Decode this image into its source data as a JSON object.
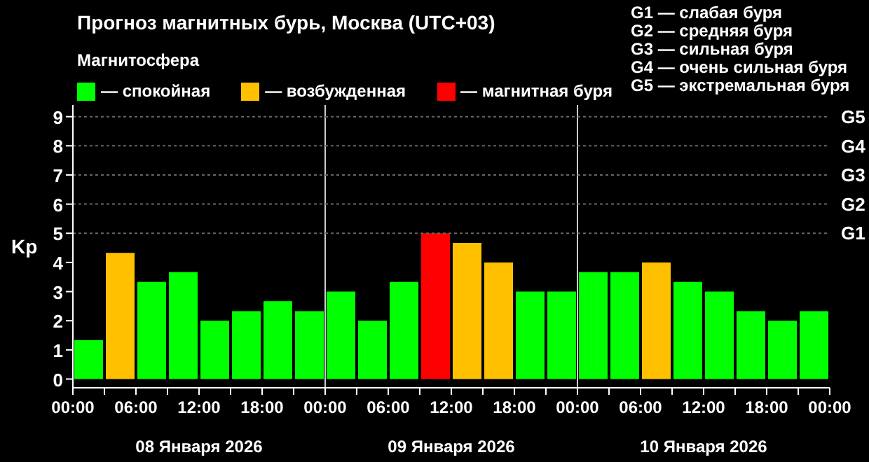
{
  "chart_data": {
    "type": "bar",
    "title": "Прогноз магнитных бурь, Москва (UTC+03)",
    "legend_title": "Магнитосфера",
    "ylabel": "Kp",
    "x": [
      "2026-01-08T01:30",
      "2026-01-08T04:30",
      "2026-01-08T07:30",
      "2026-01-08T10:30",
      "2026-01-08T13:30",
      "2026-01-08T16:30",
      "2026-01-08T19:30",
      "2026-01-08T22:30",
      "2026-01-09T01:30",
      "2026-01-09T04:30",
      "2026-01-09T07:30",
      "2026-01-09T10:30",
      "2026-01-09T13:30",
      "2026-01-09T16:30",
      "2026-01-09T19:30",
      "2026-01-09T22:30",
      "2026-01-10T01:30",
      "2026-01-10T04:30",
      "2026-01-10T07:30",
      "2026-01-10T10:30",
      "2026-01-10T13:30",
      "2026-01-10T16:30",
      "2026-01-10T19:30",
      "2026-01-10T22:30"
    ],
    "stacked": true,
    "series": [
      {
        "name": "— спокойная",
        "color": "#00ff00",
        "values": [
          1.33,
          null,
          3.33,
          3.67,
          2,
          2.33,
          2.67,
          2.33,
          3,
          2,
          3.33,
          null,
          null,
          null,
          3,
          3,
          3.67,
          3.67,
          null,
          3.33,
          3,
          2.33,
          2,
          2.33
        ]
      },
      {
        "name": "— возбужденная",
        "color": "#ffc000",
        "values": [
          null,
          4.33,
          null,
          null,
          null,
          null,
          null,
          null,
          null,
          null,
          null,
          null,
          4.67,
          4,
          null,
          null,
          null,
          null,
          4,
          null,
          null,
          null,
          null,
          null
        ]
      },
      {
        "name": "— магнитная буря",
        "color": "#ff0000",
        "values": [
          null,
          null,
          null,
          null,
          null,
          null,
          null,
          null,
          null,
          null,
          null,
          5,
          null,
          null,
          null,
          null,
          null,
          null,
          null,
          null,
          null,
          null,
          null,
          null
        ]
      }
    ],
    "xlim": [
      "2026-01-08T00:00",
      "2026-01-11T00:00"
    ],
    "xticks": [
      {
        "value": "2026-01-08T00:00",
        "label": "00:00"
      },
      {
        "value": "2026-01-08T03:00",
        "label": null
      },
      {
        "value": "2026-01-08T06:00",
        "label": "06:00"
      },
      {
        "value": "2026-01-08T09:00",
        "label": null
      },
      {
        "value": "2026-01-08T12:00",
        "label": "12:00"
      },
      {
        "value": "2026-01-08T15:00",
        "label": null
      },
      {
        "value": "2026-01-08T18:00",
        "label": "18:00"
      },
      {
        "value": "2026-01-08T21:00",
        "label": null
      },
      {
        "value": "2026-01-09T00:00",
        "label": "00:00"
      },
      {
        "value": "2026-01-09T03:00",
        "label": null
      },
      {
        "value": "2026-01-09T06:00",
        "label": "06:00"
      },
      {
        "value": "2026-01-09T09:00",
        "label": null
      },
      {
        "value": "2026-01-09T12:00",
        "label": "12:00"
      },
      {
        "value": "2026-01-09T15:00",
        "label": null
      },
      {
        "value": "2026-01-09T18:00",
        "label": "18:00"
      },
      {
        "value": "2026-01-09T21:00",
        "label": null
      },
      {
        "value": "2026-01-10T00:00",
        "label": "00:00"
      },
      {
        "value": "2026-01-10T03:00",
        "label": null
      },
      {
        "value": "2026-01-10T06:00",
        "label": "06:00"
      },
      {
        "value": "2026-01-10T09:00",
        "label": null
      },
      {
        "value": "2026-01-10T12:00",
        "label": "12:00"
      },
      {
        "value": "2026-01-10T15:00",
        "label": null
      },
      {
        "value": "2026-01-10T18:00",
        "label": "18:00"
      },
      {
        "value": "2026-01-10T21:00",
        "label": null
      },
      {
        "value": "2026-01-11T00:00",
        "label": "00:00"
      }
    ],
    "x2lim": [
      "2026-01-08T00:00",
      "2026-01-11T00:00"
    ],
    "x2ticks": [
      {
        "value": "2026-01-08T12:00",
        "label": "08 Января 2026"
      },
      {
        "value": "2026-01-09T12:00",
        "label": "09 Января 2026"
      },
      {
        "value": "2026-01-10T12:00",
        "label": "10 Января 2026"
      }
    ],
    "ylim": [
      -0.3,
      9.4
    ],
    "yticks": [
      0,
      1,
      2,
      3,
      4,
      5,
      6,
      7,
      8,
      9
    ],
    "ref_lines": [
      {
        "axis": "x",
        "value": "2026-01-09T00:00",
        "color": "#cccccc"
      },
      {
        "axis": "x",
        "value": "2026-01-10T00:00",
        "color": "#cccccc"
      },
      {
        "axis": "y",
        "value": 5,
        "label": "G1",
        "color": "#666666",
        "line_style": "dotted"
      },
      {
        "axis": "y",
        "value": 6,
        "label": "G2",
        "color": "#666666",
        "line_style": "dotted"
      },
      {
        "axis": "y",
        "value": 7,
        "label": "G3",
        "color": "#666666",
        "line_style": "dotted"
      },
      {
        "axis": "y",
        "value": 8,
        "label": "G4",
        "color": "#666666",
        "line_style": "dotted"
      },
      {
        "axis": "y",
        "value": 9,
        "label": "G5",
        "color": "#666666",
        "line_style": "dotted"
      }
    ],
    "legend": "top left",
    "annotations": [
      "G1 — слабая буря",
      "G2 — средняя буря",
      "G3 — сильная буря",
      "G4 — очень сильная буря",
      "G5 — экстремальная буря"
    ]
  }
}
